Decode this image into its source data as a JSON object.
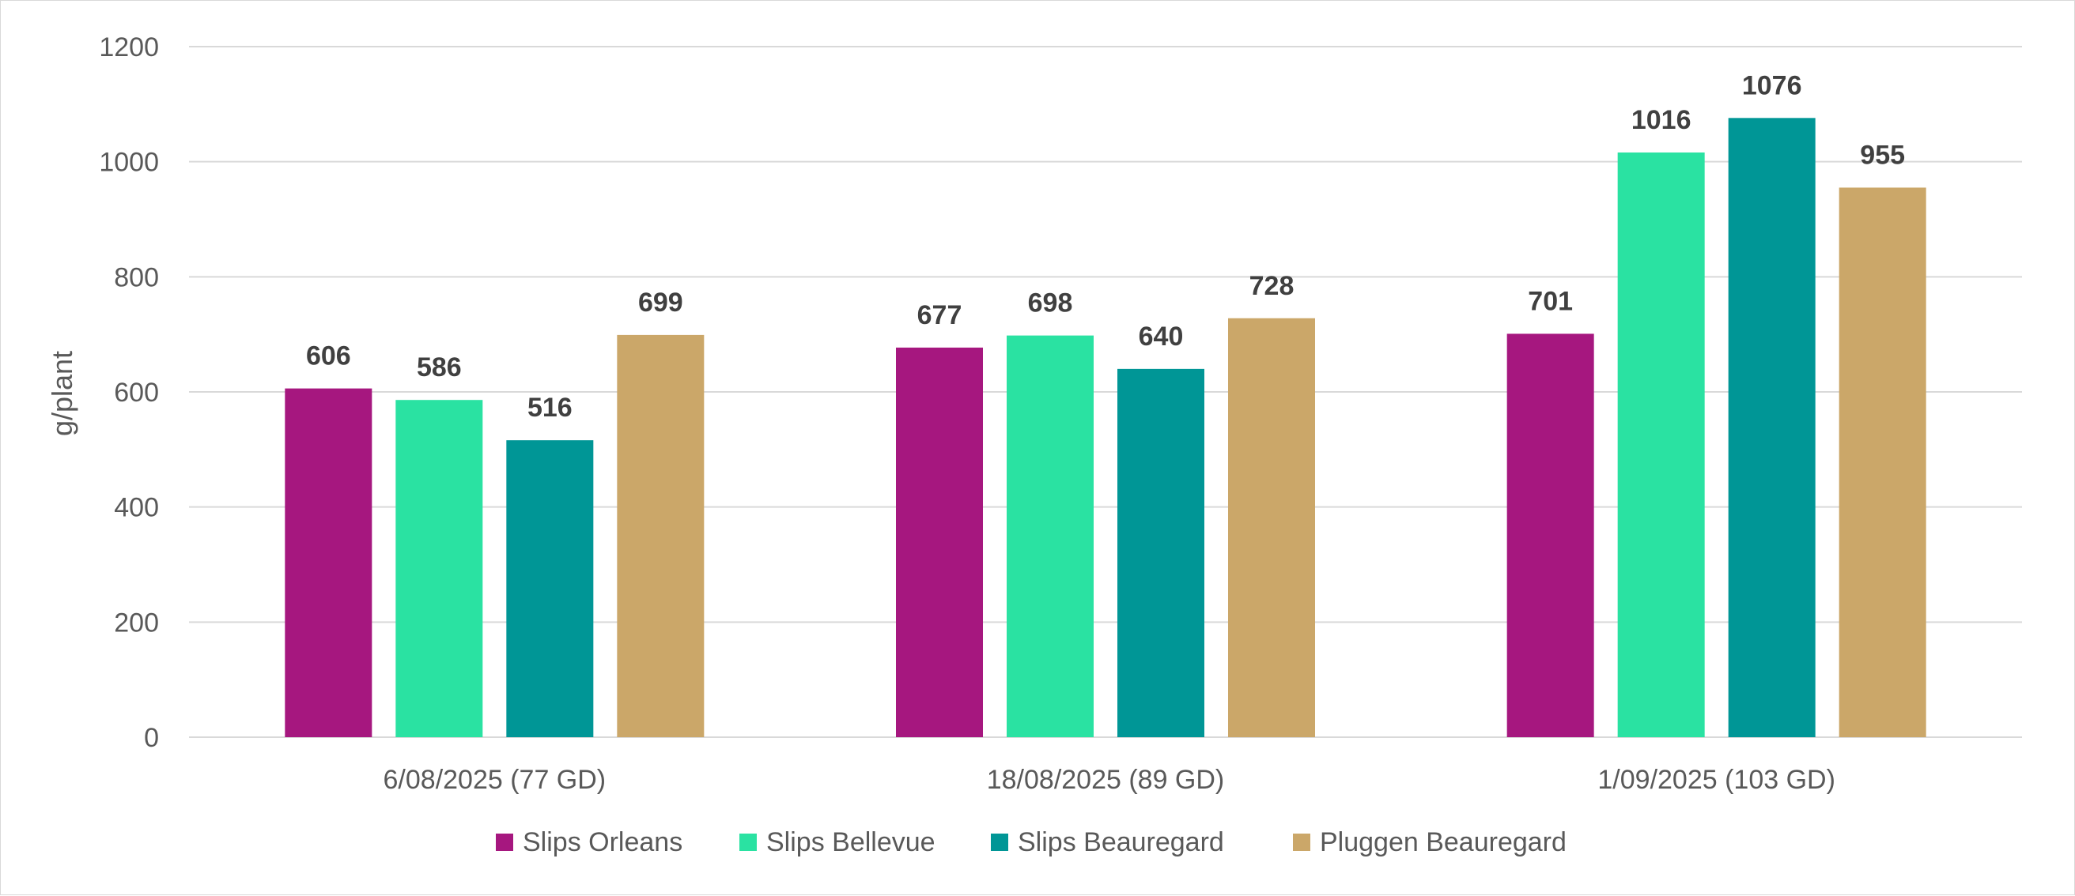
{
  "chart_data": {
    "type": "bar",
    "title": "",
    "xlabel": "",
    "ylabel": "g/plant",
    "ylim": [
      0,
      1200
    ],
    "yticks": [
      0,
      200,
      400,
      600,
      800,
      1000,
      1200
    ],
    "grid": true,
    "legend_position": "bottom",
    "categories": [
      "6/08/2025 (77 GD)",
      "18/08/2025 (89 GD)",
      "1/09/2025 (103 GD)"
    ],
    "series": [
      {
        "name": "Slips Orleans",
        "color": "#A6177F",
        "values": [
          606,
          677,
          701
        ]
      },
      {
        "name": "Slips Bellevue",
        "color": "#2AE2A2",
        "values": [
          586,
          698,
          1016
        ]
      },
      {
        "name": "Slips Beauregard",
        "color": "#009696",
        "values": [
          516,
          640,
          1076
        ]
      },
      {
        "name": "Pluggen Beauregard",
        "color": "#CBA769",
        "values": [
          699,
          728,
          955
        ]
      }
    ]
  }
}
